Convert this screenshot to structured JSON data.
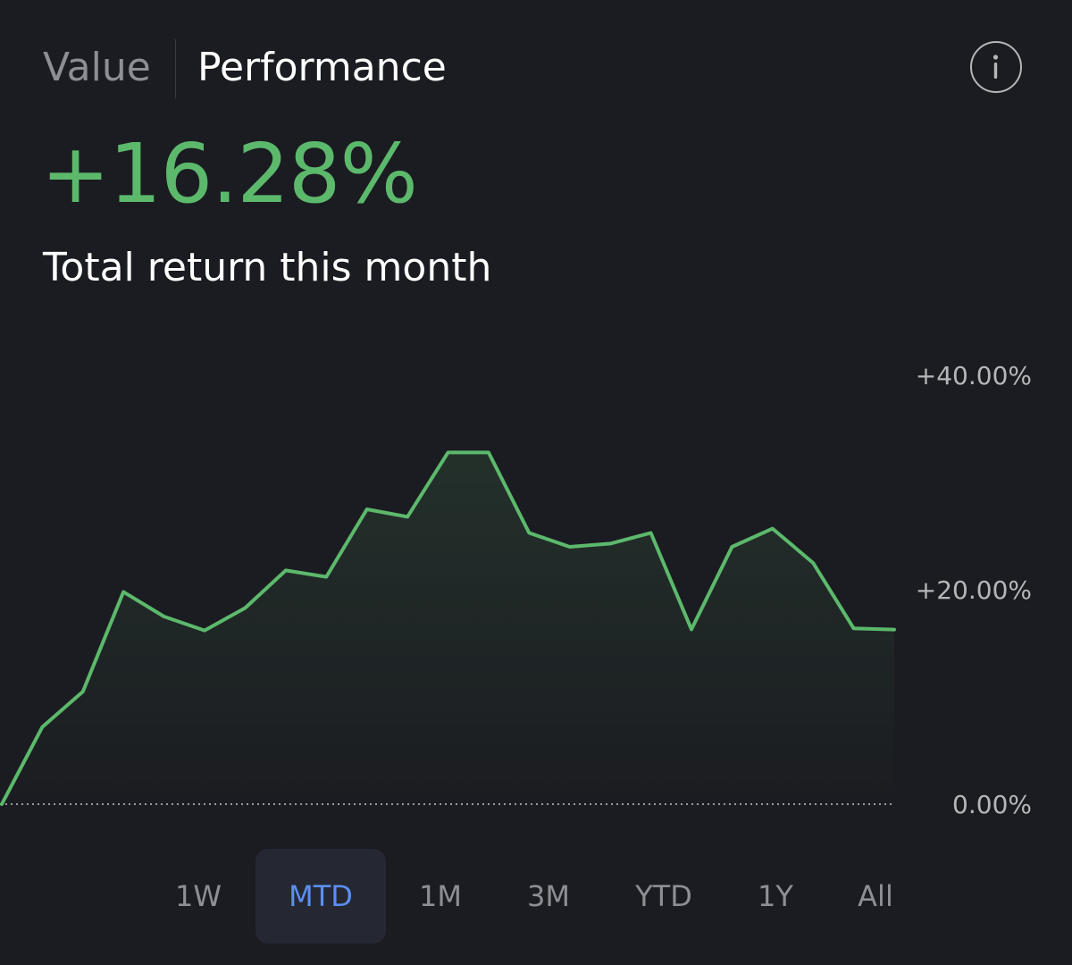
{
  "header": {
    "tabs": [
      "Value",
      "Performance"
    ],
    "active_tab": "Performance",
    "info_icon": "info-icon"
  },
  "summary": {
    "return_value": "+16.28%",
    "caption": "Total return this month"
  },
  "chart_data": {
    "type": "area",
    "y_tick_labels": [
      "+40.00%",
      "+20.00%",
      "0.00%"
    ],
    "y_ticks": [
      40,
      20,
      0
    ],
    "ylim": [
      0,
      40
    ],
    "baseline_style": "dotted",
    "line_color": "#5cb96c",
    "series": [
      {
        "values": [
          0,
          7.2,
          10.5,
          19.8,
          17.5,
          16.2,
          18.3,
          21.8,
          21.2,
          27.5,
          26.8,
          32.8,
          32.8,
          25.3,
          24,
          24.3,
          25.3,
          16.3,
          24,
          25.7,
          22.5,
          16.4,
          16.28
        ]
      }
    ]
  },
  "range_selector": {
    "options": [
      "1W",
      "MTD",
      "1M",
      "3M",
      "YTD",
      "1Y",
      "All"
    ],
    "selected": "MTD"
  },
  "colors": {
    "background": "#1b1c21",
    "positive": "#5cb96c",
    "accent": "#5b8ff2",
    "muted": "#8e8f94",
    "active_pill": "#252733"
  }
}
